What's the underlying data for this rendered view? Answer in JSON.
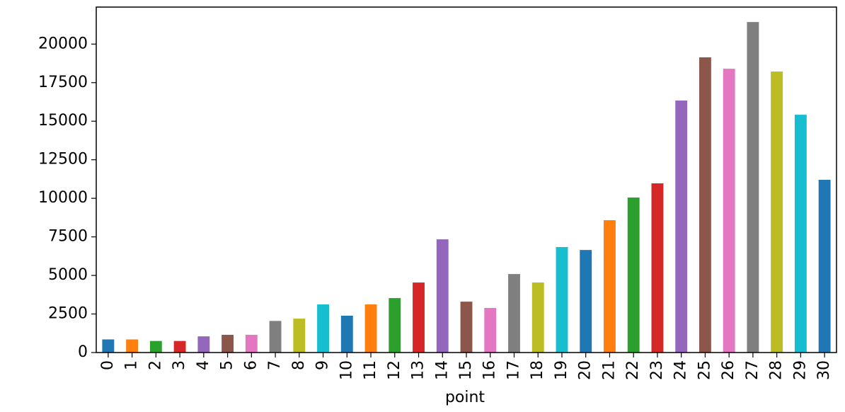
{
  "chart_data": {
    "type": "bar",
    "x_label": "point",
    "categories": [
      "0",
      "1",
      "2",
      "3",
      "4",
      "5",
      "6",
      "7",
      "8",
      "9",
      "10",
      "11",
      "12",
      "13",
      "14",
      "15",
      "16",
      "17",
      "18",
      "19",
      "20",
      "21",
      "22",
      "23",
      "24",
      "25",
      "26",
      "27",
      "28",
      "29",
      "30"
    ],
    "values": [
      850,
      850,
      750,
      750,
      1050,
      1150,
      1150,
      2050,
      2200,
      3120,
      2390,
      3120,
      3530,
      4540,
      7340,
      3300,
      2890,
      5090,
      4540,
      6840,
      6650,
      8580,
      10050,
      10970,
      16340,
      19140,
      18400,
      21430,
      18220,
      15420,
      11200
    ],
    "colors": [
      "#1f77b4",
      "#ff7f0e",
      "#2ca02c",
      "#d62728",
      "#9467bd",
      "#8c564b",
      "#e377c2",
      "#7f7f7f",
      "#bcbd22",
      "#17becf"
    ],
    "ylim": [
      0,
      22400
    ],
    "yticks": [
      0,
      2500,
      5000,
      7500,
      10000,
      12500,
      15000,
      17500,
      20000
    ],
    "grid": false
  }
}
